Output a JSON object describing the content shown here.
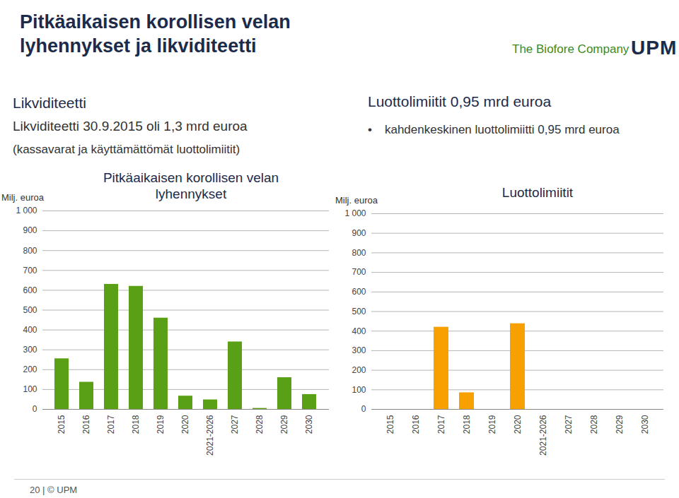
{
  "slide": {
    "title": [
      "Pitkäaikaisen korollisen velan",
      "lyhennykset ja likviditeetti"
    ],
    "tagline": "The Biofore Company",
    "brand": "UPM",
    "liquidity_heading": "Likviditeetti",
    "liquidity_text": "Likviditeetti 30.9.2015 oli 1,3 mrd euroa",
    "liquidity_note": "(kassavarat ja käyttämättömät luottolimiitit)",
    "limits_heading": "Luottolimiitit 0,95 mrd euroa",
    "limits_bullet": "kahdenkeskinen luottolimiitti 0,95 mrd euroa",
    "footer": "20 | © UPM"
  },
  "chart_data": [
    {
      "type": "bar",
      "title": "Pitkäaikaisen korollisen velan lyhennykset",
      "ylabel": "Milj. euroa",
      "categories": [
        "2015",
        "2016",
        "2017",
        "2018",
        "2019",
        "2020",
        "2021-2026",
        "2027",
        "2028",
        "2029",
        "2030"
      ],
      "values": [
        255,
        137,
        630,
        620,
        460,
        67,
        48,
        340,
        5,
        160,
        75
      ],
      "color": "#5aa016",
      "ylim": [
        0,
        1000
      ],
      "yticks": [
        0,
        100,
        200,
        300,
        400,
        500,
        600,
        700,
        800,
        900,
        {
          "value": 1000,
          "label": "1 000"
        }
      ],
      "grid": true
    },
    {
      "type": "bar",
      "title": "Luottolimiitit",
      "ylabel": "Milj. euroa",
      "categories": [
        "2015",
        "2016",
        "2017",
        "2018",
        "2019",
        "2020",
        "2021-2026",
        "2027",
        "2028",
        "2029",
        "2030"
      ],
      "values": [
        0,
        0,
        420,
        85,
        0,
        438,
        0,
        0,
        0,
        0,
        0
      ],
      "color": "#f7a000",
      "ylim": [
        0,
        1000
      ],
      "yticks": [
        0,
        100,
        200,
        300,
        400,
        500,
        600,
        700,
        800,
        900,
        {
          "value": 1000,
          "label": "1 000"
        }
      ],
      "grid": true
    }
  ]
}
